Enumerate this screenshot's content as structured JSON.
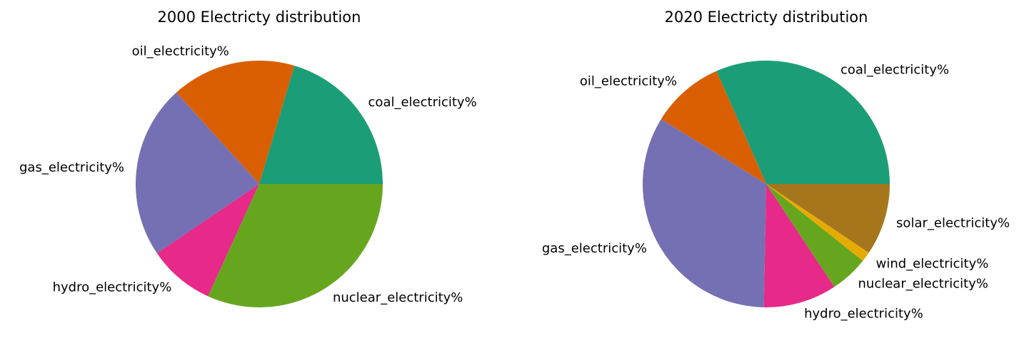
{
  "chart_data": [
    {
      "type": "pie",
      "title": "2000 Electricty distribution",
      "slices": [
        {
          "label": "coal_electricity%",
          "value": 20.4,
          "color": "#1b9e77"
        },
        {
          "label": "oil_electricity%",
          "value": 16.3,
          "color": "#d95f02"
        },
        {
          "label": "gas_electricity%",
          "value": 22.8,
          "color": "#7570b3"
        },
        {
          "label": "hydro_electricity%",
          "value": 8.7,
          "color": "#e7298a"
        },
        {
          "label": "nuclear_electricity%",
          "value": 31.8,
          "color": "#66a61e"
        }
      ],
      "start_angle": 0,
      "direction": "counterclockwise"
    },
    {
      "type": "pie",
      "title": "2020 Electricty distribution",
      "slices": [
        {
          "label": "coal_electricity%",
          "value": 31.6,
          "color": "#1b9e77"
        },
        {
          "label": "oil_electricity%",
          "value": 9.6,
          "color": "#d95f02"
        },
        {
          "label": "gas_electricity%",
          "value": 33.5,
          "color": "#7570b3"
        },
        {
          "label": "hydro_electricity%",
          "value": 9.6,
          "color": "#e7298a"
        },
        {
          "label": "nuclear_electricity%",
          "value": 5.0,
          "color": "#66a61e"
        },
        {
          "label": "wind_electricity%",
          "value": 1.3,
          "color": "#e6ab02"
        },
        {
          "label": "solar_electricity%",
          "value": 9.4,
          "color": "#a6761d"
        }
      ],
      "start_angle": 0,
      "direction": "counterclockwise"
    }
  ]
}
